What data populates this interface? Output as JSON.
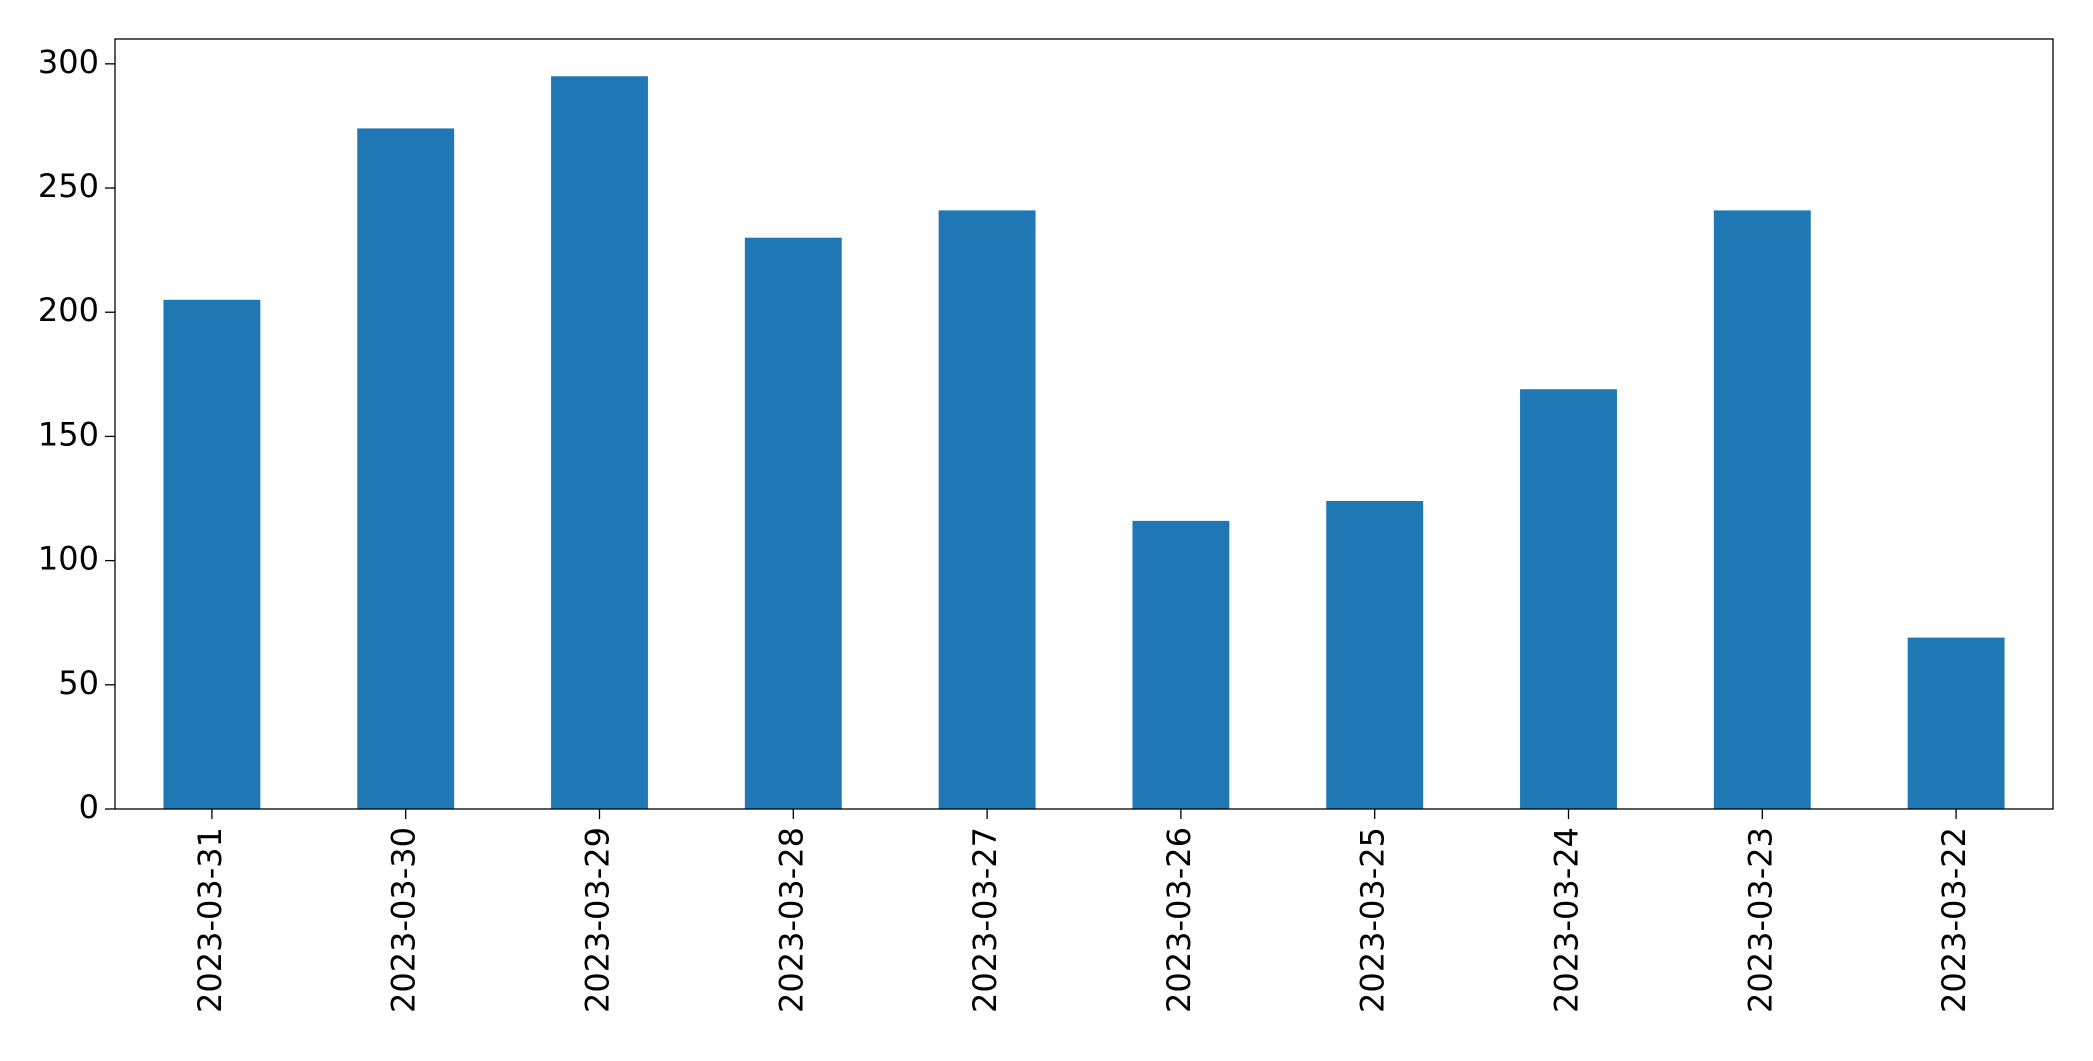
{
  "chart_data": {
    "type": "bar",
    "categories": [
      "2023-03-31",
      "2023-03-30",
      "2023-03-29",
      "2023-03-28",
      "2023-03-27",
      "2023-03-26",
      "2023-03-25",
      "2023-03-24",
      "2023-03-23",
      "2023-03-22"
    ],
    "values": [
      205,
      274,
      295,
      230,
      241,
      116,
      124,
      169,
      241,
      69
    ],
    "color": "#1f77b4",
    "ylim": [
      0,
      310
    ],
    "yticks": [
      0,
      50,
      100,
      150,
      200,
      250,
      300
    ],
    "grid": false
  }
}
